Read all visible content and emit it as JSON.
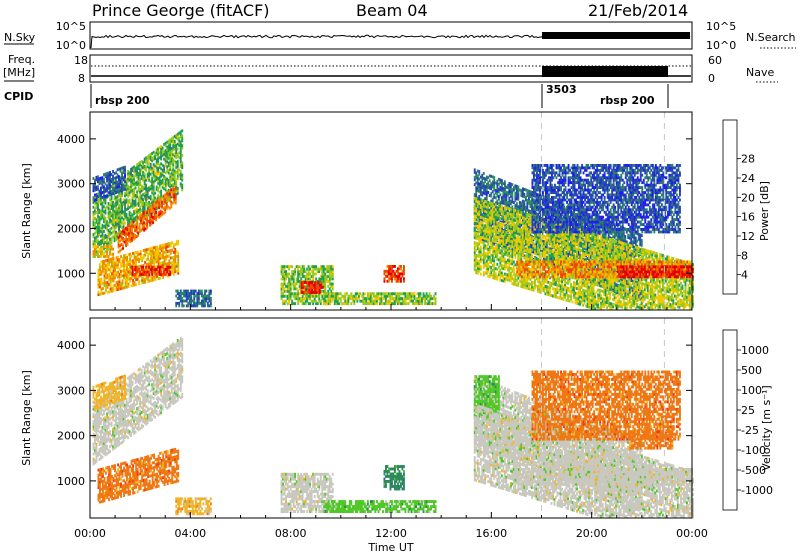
{
  "header": {
    "station": "Prince George (fitACF)",
    "beam": "Beam 04",
    "date": "21/Feb/2014"
  },
  "top_panels": {
    "nsky_label": "N.Sky",
    "nsearch_label": "N.Search",
    "nsky_ticks": [
      "10^5",
      "10^0"
    ],
    "nsearch_ticks": [
      "10^5",
      "10^0"
    ],
    "freq_label": "Freq.",
    "freq_unit": "[MHz]",
    "freq_ticks": [
      "18",
      "8"
    ],
    "nave_label": "Nave",
    "nave_ticks": [
      "60",
      "0"
    ],
    "cpid_label": "CPID",
    "cpid_segments": [
      {
        "label": "rbsp 200",
        "start_h": 0,
        "end_h": 18
      },
      {
        "label": "3503",
        "start_h": 18,
        "end_h": 23
      },
      {
        "label": "rbsp 200",
        "start_h": 18,
        "end_h": 23
      }
    ]
  },
  "colors": {
    "power": [
      "#1e1ef0",
      "#2848b4",
      "#2e7d6e",
      "#1ea050",
      "#96c81e",
      "#f0c800",
      "#f08c00",
      "#f04600",
      "#e60000"
    ],
    "velocity": [
      "#1e3cb4",
      "#2a6d9c",
      "#2e8a5e",
      "#50c828",
      "#c8c8be",
      "#f0b428",
      "#f07814",
      "#f03c14",
      "#e60000"
    ],
    "dashed_marker": "#c8c8c8"
  },
  "chart_data": [
    {
      "type": "heatmap",
      "quantity": "power",
      "ylabel": "Slant Range [km]",
      "xlabel": "",
      "x_unit": "hours UT",
      "xlim": [
        0,
        24
      ],
      "ylim": [
        180,
        4600
      ],
      "yticks": [
        1000,
        2000,
        3000,
        4000
      ],
      "colorbar": {
        "label": "Power [dB]",
        "ticks": [
          "4",
          "8",
          "12",
          "16",
          "20",
          "24",
          "28"
        ],
        "range": [
          0,
          30
        ]
      },
      "markers_h": [
        18.0,
        22.9
      ],
      "regions": [
        {
          "t": [
            0.1,
            3.7
          ],
          "r": [
            1350,
            2700
          ],
          "slope_km_per_h": 420,
          "value": 13
        },
        {
          "t": [
            1.1,
            3.4
          ],
          "r": [
            1450,
            1850
          ],
          "slope_km_per_h": 480,
          "value": 24
        },
        {
          "t": [
            0.1,
            0.9
          ],
          "r": [
            1350,
            1600
          ],
          "slope_km_per_h": 0,
          "value": 19
        },
        {
          "t": [
            0.1,
            1.4
          ],
          "r": [
            2600,
            3100
          ],
          "slope_km_per_h": 200,
          "value": 6
        },
        {
          "t": [
            0.3,
            3.5
          ],
          "r": [
            500,
            1250
          ],
          "slope_km_per_h": 150,
          "value": 20
        },
        {
          "t": [
            1.6,
            3.2
          ],
          "r": [
            950,
            1150
          ],
          "slope_km_per_h": 0,
          "value": 27
        },
        {
          "t": [
            3.4,
            4.8
          ],
          "r": [
            250,
            600
          ],
          "slope_km_per_h": 0,
          "value": 7
        },
        {
          "t": [
            7.6,
            9.7
          ],
          "r": [
            300,
            1150
          ],
          "slope_km_per_h": 0,
          "value": 14
        },
        {
          "t": [
            8.4,
            9.3
          ],
          "r": [
            550,
            800
          ],
          "slope_km_per_h": 0,
          "value": 28
        },
        {
          "t": [
            9.3,
            13.8
          ],
          "r": [
            300,
            550
          ],
          "slope_km_per_h": 0,
          "value": 15
        },
        {
          "t": [
            11.7,
            12.5
          ],
          "r": [
            800,
            1150
          ],
          "slope_km_per_h": 0,
          "value": 26
        },
        {
          "t": [
            15.3,
            22.0
          ],
          "r": [
            1800,
            3300
          ],
          "slope_km_per_h": -220,
          "value": 7
        },
        {
          "t": [
            15.3,
            24.0
          ],
          "r": [
            1000,
            2700
          ],
          "slope_km_per_h": -170,
          "value": 16
        },
        {
          "t": [
            17.0,
            24.0
          ],
          "r": [
            900,
            1250
          ],
          "slope_km_per_h": 0,
          "value": 22
        },
        {
          "t": [
            21.0,
            24.0
          ],
          "r": [
            900,
            1150
          ],
          "slope_km_per_h": 0,
          "value": 28
        },
        {
          "t": [
            17.6,
            23.5
          ],
          "r": [
            1900,
            3400
          ],
          "slope_km_per_h": 0,
          "value": 5
        }
      ]
    },
    {
      "type": "heatmap",
      "quantity": "velocity",
      "ylabel": "Slant Range [km]",
      "xlabel": "Time UT",
      "x_unit": "hours UT",
      "xlim": [
        0,
        24
      ],
      "ylim": [
        180,
        4600
      ],
      "yticks": [
        1000,
        2000,
        3000,
        4000
      ],
      "xticks": [
        "00:00",
        "04:00",
        "08:00",
        "12:00",
        "16:00",
        "20:00",
        "00:00"
      ],
      "colorbar": {
        "label": "Velocity [m s⁻¹]",
        "ticks": [
          "1000",
          "500",
          "100",
          "25",
          "-25",
          "-100",
          "-500",
          "-1000"
        ]
      },
      "markers_h": [
        18.0,
        22.9
      ],
      "regions": [
        {
          "t": [
            0.1,
            3.7
          ],
          "r": [
            1350,
            2700
          ],
          "slope_km_per_h": 420,
          "value": 4
        },
        {
          "t": [
            0.1,
            1.4
          ],
          "r": [
            2550,
            3100
          ],
          "slope_km_per_h": 200,
          "value": 5
        },
        {
          "t": [
            0.3,
            3.5
          ],
          "r": [
            500,
            1250
          ],
          "slope_km_per_h": 150,
          "value": 6
        },
        {
          "t": [
            3.4,
            4.8
          ],
          "r": [
            250,
            600
          ],
          "slope_km_per_h": 0,
          "value": 5
        },
        {
          "t": [
            7.6,
            9.7
          ],
          "r": [
            300,
            1150
          ],
          "slope_km_per_h": 0,
          "value": 4
        },
        {
          "t": [
            9.3,
            13.8
          ],
          "r": [
            300,
            550
          ],
          "slope_km_per_h": 0,
          "value": 3
        },
        {
          "t": [
            11.7,
            12.5
          ],
          "r": [
            800,
            1300
          ],
          "slope_km_per_h": 0,
          "value": 2
        },
        {
          "t": [
            15.3,
            22.0
          ],
          "r": [
            1800,
            3300
          ],
          "slope_km_per_h": -220,
          "value": 4
        },
        {
          "t": [
            15.3,
            16.3
          ],
          "r": [
            2400,
            3300
          ],
          "slope_km_per_h": 0,
          "value": 3
        },
        {
          "t": [
            15.3,
            24.0
          ],
          "r": [
            1000,
            2700
          ],
          "slope_km_per_h": -170,
          "value": 4
        },
        {
          "t": [
            17.0,
            24.0
          ],
          "r": [
            900,
            1250
          ],
          "slope_km_per_h": 0,
          "value": 4
        },
        {
          "t": [
            21.5,
            23.2
          ],
          "r": [
            1700,
            2100
          ],
          "slope_km_per_h": 0,
          "value": 6
        },
        {
          "t": [
            17.6,
            23.5
          ],
          "r": [
            1900,
            3400
          ],
          "slope_km_per_h": 0,
          "value": 6
        }
      ]
    }
  ]
}
